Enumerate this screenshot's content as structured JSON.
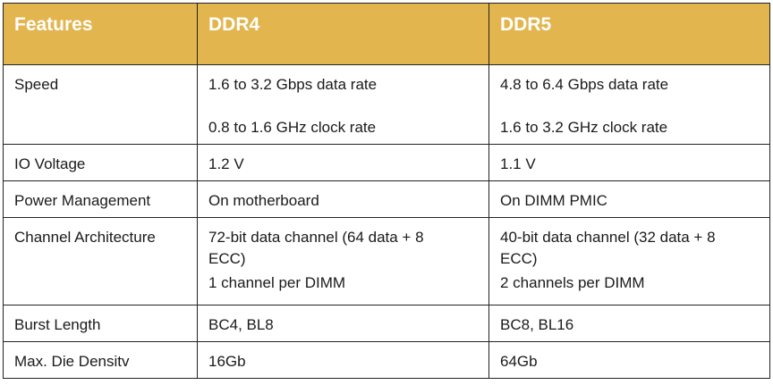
{
  "table": {
    "headers": [
      "Features",
      "DDR4",
      "DDR5"
    ],
    "rows": [
      {
        "feature": "Speed",
        "ddr4": [
          "1.6 to 3.2 Gbps data rate",
          "0.8 to 1.6 GHz clock rate"
        ],
        "ddr5": [
          "4.8 to 6.4 Gbps data rate",
          "1.6 to 3.2 GHz clock rate"
        ]
      },
      {
        "feature": "IO Voltage",
        "ddr4": [
          "1.2 V"
        ],
        "ddr5": [
          "1.1 V"
        ]
      },
      {
        "feature": "Power Management",
        "ddr4": [
          "On motherboard"
        ],
        "ddr5": [
          "On DIMM PMIC"
        ]
      },
      {
        "feature": "Channel Architecture",
        "ddr4": [
          "72-bit data channel (64 data + 8",
          "ECC)",
          "1 channel per DIMM"
        ],
        "ddr5": [
          "40-bit data channel (32 data + 8",
          "ECC)",
          "2 channels per DIMM"
        ]
      },
      {
        "feature": "Burst Length",
        "ddr4": [
          "BC4, BL8"
        ],
        "ddr5": [
          "BC8, BL16"
        ]
      },
      {
        "feature": "Max. Die Densitv",
        "ddr4": [
          "16Gb"
        ],
        "ddr5": [
          "64Gb"
        ]
      }
    ]
  },
  "colors": {
    "header_bg": "#e2b54f",
    "header_text": "#ffffff",
    "border": "#222222"
  }
}
